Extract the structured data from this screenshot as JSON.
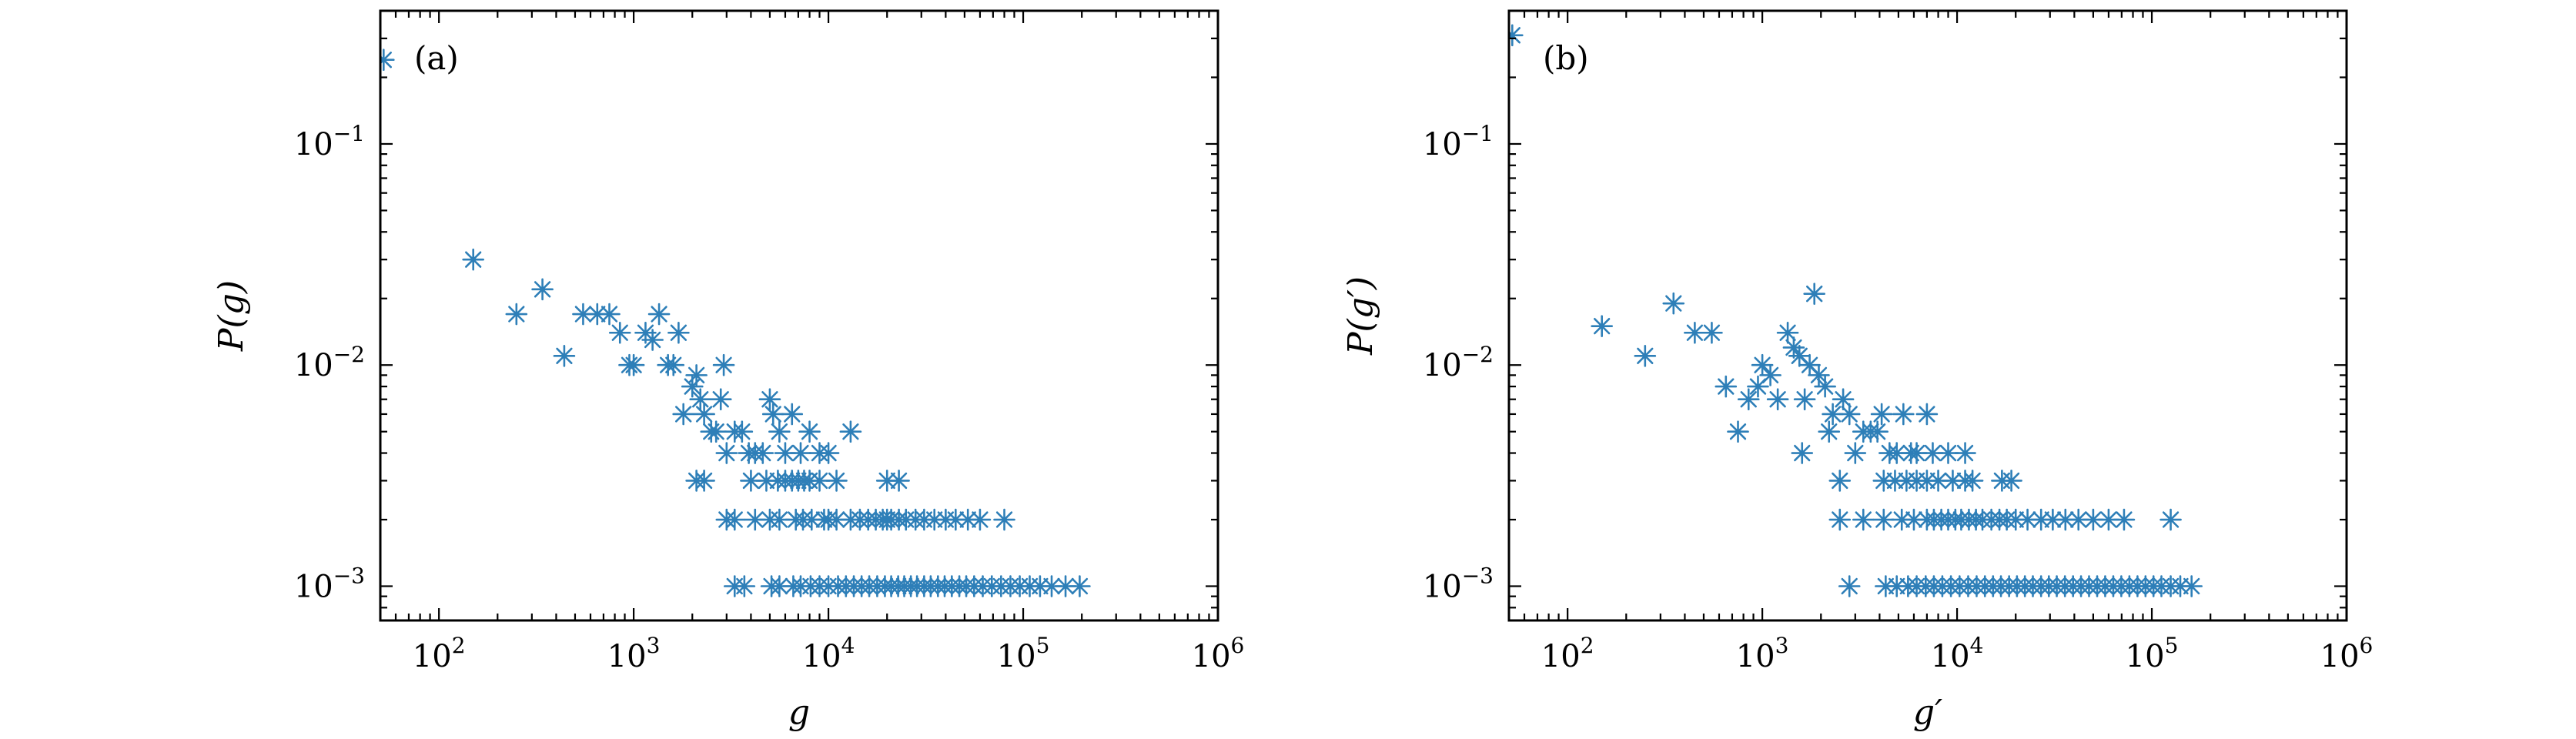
{
  "chart_data": [
    {
      "type": "scatter",
      "panel_label": "(a)",
      "xlabel": "g",
      "ylabel": "P(g)",
      "xscale": "log",
      "yscale": "log",
      "xlim": [
        50,
        1000000
      ],
      "ylim": [
        0.0007,
        0.4
      ],
      "xticks": [
        {
          "v": 100,
          "e": "2"
        },
        {
          "v": 1000,
          "e": "3"
        },
        {
          "v": 10000,
          "e": "4"
        },
        {
          "v": 100000,
          "e": "5"
        },
        {
          "v": 1000000,
          "e": "6"
        }
      ],
      "yticks": [
        {
          "v": 0.1,
          "e": "−1"
        },
        {
          "v": 0.01,
          "e": "−2"
        },
        {
          "v": 0.001,
          "e": "−3"
        }
      ],
      "marker": "asterisk",
      "color": "#2e7fb8",
      "legend": "none",
      "points": [
        [
          52,
          0.24
        ],
        [
          150,
          0.03
        ],
        [
          250,
          0.017
        ],
        [
          340,
          0.022
        ],
        [
          440,
          0.011
        ],
        [
          550,
          0.017
        ],
        [
          650,
          0.017
        ],
        [
          750,
          0.017
        ],
        [
          850,
          0.014
        ],
        [
          950,
          0.01
        ],
        [
          1000,
          0.01
        ],
        [
          1150,
          0.014
        ],
        [
          1250,
          0.013
        ],
        [
          1350,
          0.017
        ],
        [
          1500,
          0.01
        ],
        [
          1600,
          0.01
        ],
        [
          1700,
          0.014
        ],
        [
          1800,
          0.006
        ],
        [
          2000,
          0.008
        ],
        [
          2100,
          0.009
        ],
        [
          2200,
          0.007
        ],
        [
          2300,
          0.006
        ],
        [
          2500,
          0.005
        ],
        [
          2650,
          0.005
        ],
        [
          2800,
          0.007
        ],
        [
          2900,
          0.01
        ],
        [
          3000,
          0.004
        ],
        [
          3300,
          0.005
        ],
        [
          3600,
          0.005
        ],
        [
          3900,
          0.004
        ],
        [
          4200,
          0.004
        ],
        [
          4600,
          0.004
        ],
        [
          5000,
          0.007
        ],
        [
          5200,
          0.006
        ],
        [
          5600,
          0.005
        ],
        [
          6000,
          0.004
        ],
        [
          6500,
          0.006
        ],
        [
          7200,
          0.004
        ],
        [
          8000,
          0.005
        ],
        [
          9000,
          0.004
        ],
        [
          10000,
          0.004
        ],
        [
          13000,
          0.005
        ],
        [
          2100,
          0.003
        ],
        [
          2300,
          0.003
        ],
        [
          4000,
          0.003
        ],
        [
          4800,
          0.003
        ],
        [
          5500,
          0.003
        ],
        [
          6000,
          0.003
        ],
        [
          6500,
          0.003
        ],
        [
          7000,
          0.003
        ],
        [
          7500,
          0.003
        ],
        [
          8000,
          0.003
        ],
        [
          9000,
          0.003
        ],
        [
          11000,
          0.003
        ],
        [
          20000,
          0.003
        ],
        [
          23000,
          0.003
        ],
        [
          3000,
          0.002
        ],
        [
          3300,
          0.002
        ],
        [
          4200,
          0.002
        ],
        [
          5000,
          0.002
        ],
        [
          5600,
          0.002
        ],
        [
          6800,
          0.002
        ],
        [
          7400,
          0.002
        ],
        [
          8200,
          0.002
        ],
        [
          9500,
          0.002
        ],
        [
          10000,
          0.002
        ],
        [
          11000,
          0.002
        ],
        [
          13000,
          0.002
        ],
        [
          14500,
          0.002
        ],
        [
          16000,
          0.002
        ],
        [
          17500,
          0.002
        ],
        [
          19000,
          0.002
        ],
        [
          20000,
          0.002
        ],
        [
          21000,
          0.002
        ],
        [
          23000,
          0.002
        ],
        [
          25000,
          0.002
        ],
        [
          28000,
          0.002
        ],
        [
          31000,
          0.002
        ],
        [
          35000,
          0.002
        ],
        [
          40000,
          0.002
        ],
        [
          45000,
          0.002
        ],
        [
          52000,
          0.002
        ],
        [
          60000,
          0.002
        ],
        [
          80000,
          0.002
        ],
        [
          3300,
          0.001
        ],
        [
          3700,
          0.001
        ],
        [
          5100,
          0.001
        ],
        [
          5600,
          0.001
        ],
        [
          6600,
          0.001
        ],
        [
          7200,
          0.001
        ],
        [
          8100,
          0.001
        ],
        [
          9000,
          0.001
        ],
        [
          10000,
          0.001
        ],
        [
          11200,
          0.001
        ],
        [
          12300,
          0.001
        ],
        [
          13500,
          0.001
        ],
        [
          14800,
          0.001
        ],
        [
          16200,
          0.001
        ],
        [
          17800,
          0.001
        ],
        [
          19500,
          0.001
        ],
        [
          21000,
          0.001
        ],
        [
          22800,
          0.001
        ],
        [
          24500,
          0.001
        ],
        [
          26500,
          0.001
        ],
        [
          28500,
          0.001
        ],
        [
          31000,
          0.001
        ],
        [
          33500,
          0.001
        ],
        [
          36500,
          0.001
        ],
        [
          39500,
          0.001
        ],
        [
          43000,
          0.001
        ],
        [
          47000,
          0.001
        ],
        [
          51000,
          0.001
        ],
        [
          56000,
          0.001
        ],
        [
          62000,
          0.001
        ],
        [
          69000,
          0.001
        ],
        [
          77000,
          0.001
        ],
        [
          86000,
          0.001
        ],
        [
          96000,
          0.001
        ],
        [
          108000,
          0.001
        ],
        [
          122000,
          0.001
        ],
        [
          140000,
          0.001
        ],
        [
          165000,
          0.001
        ],
        [
          195000,
          0.001
        ]
      ]
    },
    {
      "type": "scatter",
      "panel_label": "(b)",
      "xlabel": "g′",
      "ylabel": "P(g′)",
      "xscale": "log",
      "yscale": "log",
      "xlim": [
        50,
        1000000
      ],
      "ylim": [
        0.0007,
        0.4
      ],
      "xticks": [
        {
          "v": 100,
          "e": "2"
        },
        {
          "v": 1000,
          "e": "3"
        },
        {
          "v": 10000,
          "e": "4"
        },
        {
          "v": 100000,
          "e": "5"
        },
        {
          "v": 1000000,
          "e": "6"
        }
      ],
      "yticks": [
        {
          "v": 0.1,
          "e": "−1"
        },
        {
          "v": 0.01,
          "e": "−2"
        },
        {
          "v": 0.001,
          "e": "−3"
        }
      ],
      "marker": "asterisk",
      "color": "#2e7fb8",
      "legend": "none",
      "points": [
        [
          52,
          0.31
        ],
        [
          150,
          0.015
        ],
        [
          250,
          0.011
        ],
        [
          350,
          0.019
        ],
        [
          450,
          0.014
        ],
        [
          550,
          0.014
        ],
        [
          650,
          0.008
        ],
        [
          750,
          0.005
        ],
        [
          850,
          0.007
        ],
        [
          950,
          0.008
        ],
        [
          1000,
          0.01
        ],
        [
          1100,
          0.009
        ],
        [
          1200,
          0.007
        ],
        [
          1350,
          0.014
        ],
        [
          1450,
          0.012
        ],
        [
          1550,
          0.011
        ],
        [
          1650,
          0.007
        ],
        [
          1750,
          0.01
        ],
        [
          1850,
          0.021
        ],
        [
          1950,
          0.009
        ],
        [
          2100,
          0.008
        ],
        [
          2200,
          0.005
        ],
        [
          2300,
          0.006
        ],
        [
          1600,
          0.004
        ],
        [
          2600,
          0.007
        ],
        [
          2800,
          0.006
        ],
        [
          3000,
          0.004
        ],
        [
          3300,
          0.005
        ],
        [
          3600,
          0.005
        ],
        [
          3900,
          0.005
        ],
        [
          4100,
          0.006
        ],
        [
          4500,
          0.004
        ],
        [
          4900,
          0.004
        ],
        [
          5300,
          0.006
        ],
        [
          5800,
          0.004
        ],
        [
          6200,
          0.004
        ],
        [
          7000,
          0.006
        ],
        [
          7500,
          0.004
        ],
        [
          9000,
          0.004
        ],
        [
          11000,
          0.004
        ],
        [
          2500,
          0.003
        ],
        [
          4200,
          0.003
        ],
        [
          4800,
          0.003
        ],
        [
          5500,
          0.003
        ],
        [
          6200,
          0.003
        ],
        [
          7000,
          0.003
        ],
        [
          8000,
          0.003
        ],
        [
          9500,
          0.003
        ],
        [
          11000,
          0.003
        ],
        [
          12000,
          0.003
        ],
        [
          17000,
          0.003
        ],
        [
          19000,
          0.003
        ],
        [
          2500,
          0.002
        ],
        [
          3300,
          0.002
        ],
        [
          4200,
          0.002
        ],
        [
          5200,
          0.002
        ],
        [
          6000,
          0.002
        ],
        [
          7000,
          0.002
        ],
        [
          7600,
          0.002
        ],
        [
          8300,
          0.002
        ],
        [
          9000,
          0.002
        ],
        [
          9800,
          0.002
        ],
        [
          10500,
          0.002
        ],
        [
          11500,
          0.002
        ],
        [
          12500,
          0.002
        ],
        [
          13500,
          0.002
        ],
        [
          15000,
          0.002
        ],
        [
          16500,
          0.002
        ],
        [
          18000,
          0.002
        ],
        [
          20000,
          0.002
        ],
        [
          23000,
          0.002
        ],
        [
          27000,
          0.002
        ],
        [
          31000,
          0.002
        ],
        [
          36000,
          0.002
        ],
        [
          42000,
          0.002
        ],
        [
          50000,
          0.002
        ],
        [
          60000,
          0.002
        ],
        [
          72000,
          0.002
        ],
        [
          125000,
          0.002
        ],
        [
          2800,
          0.001
        ],
        [
          4300,
          0.001
        ],
        [
          4900,
          0.001
        ],
        [
          5600,
          0.001
        ],
        [
          6200,
          0.001
        ],
        [
          6900,
          0.001
        ],
        [
          7600,
          0.001
        ],
        [
          8400,
          0.001
        ],
        [
          9300,
          0.001
        ],
        [
          10300,
          0.001
        ],
        [
          11400,
          0.001
        ],
        [
          12600,
          0.001
        ],
        [
          13900,
          0.001
        ],
        [
          15300,
          0.001
        ],
        [
          16800,
          0.001
        ],
        [
          18500,
          0.001
        ],
        [
          20300,
          0.001
        ],
        [
          22300,
          0.001
        ],
        [
          24500,
          0.001
        ],
        [
          27000,
          0.001
        ],
        [
          29600,
          0.001
        ],
        [
          32500,
          0.001
        ],
        [
          35800,
          0.001
        ],
        [
          39400,
          0.001
        ],
        [
          43300,
          0.001
        ],
        [
          47600,
          0.001
        ],
        [
          52400,
          0.001
        ],
        [
          57600,
          0.001
        ],
        [
          63400,
          0.001
        ],
        [
          69700,
          0.001
        ],
        [
          76700,
          0.001
        ],
        [
          84400,
          0.001
        ],
        [
          92800,
          0.001
        ],
        [
          102000,
          0.001
        ],
        [
          112000,
          0.001
        ],
        [
          125000,
          0.001
        ],
        [
          140000,
          0.001
        ],
        [
          160000,
          0.001
        ]
      ]
    }
  ]
}
